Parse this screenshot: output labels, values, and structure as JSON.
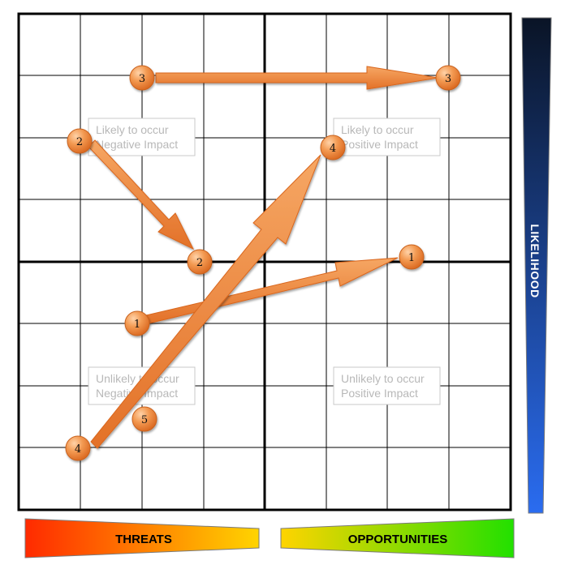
{
  "quadrants": {
    "top_left": [
      "Likely to occur",
      "Negative Impact"
    ],
    "top_right": [
      "Likely to occur",
      "Positive Impact"
    ],
    "bottom_left": [
      "Unlikely to occur",
      "Negative Impact"
    ],
    "bottom_right": [
      "Unlikely to occur",
      "Positive Impact"
    ]
  },
  "axis": {
    "threats": "THREATS",
    "opportunities": "OPPORTUNITIES",
    "likelihood": "LIKELIHOOD"
  },
  "colors": {
    "node": "#f08a3c",
    "arrow": "#f08a3c",
    "threat_gradient": [
      "#ff2a00",
      "#ffd400"
    ],
    "opportunity_gradient": [
      "#ffd400",
      "#22e000"
    ],
    "likelihood_gradient": [
      "#0a1a33",
      "#2a6cf0"
    ]
  },
  "nodes": [
    {
      "id": "n1a",
      "label": "1"
    },
    {
      "id": "n1b",
      "label": "1"
    },
    {
      "id": "n2a",
      "label": "2"
    },
    {
      "id": "n2b",
      "label": "2"
    },
    {
      "id": "n3a",
      "label": "3"
    },
    {
      "id": "n3b",
      "label": "3"
    },
    {
      "id": "n4a",
      "label": "4"
    },
    {
      "id": "n4b",
      "label": "4"
    },
    {
      "id": "n5",
      "label": "5"
    }
  ],
  "arrows": [
    {
      "from": "n3a",
      "to": "n3b"
    },
    {
      "from": "n2a",
      "to": "n2b"
    },
    {
      "from": "n1a",
      "to": "n1b"
    },
    {
      "from": "n4a",
      "to": "n4b"
    }
  ]
}
